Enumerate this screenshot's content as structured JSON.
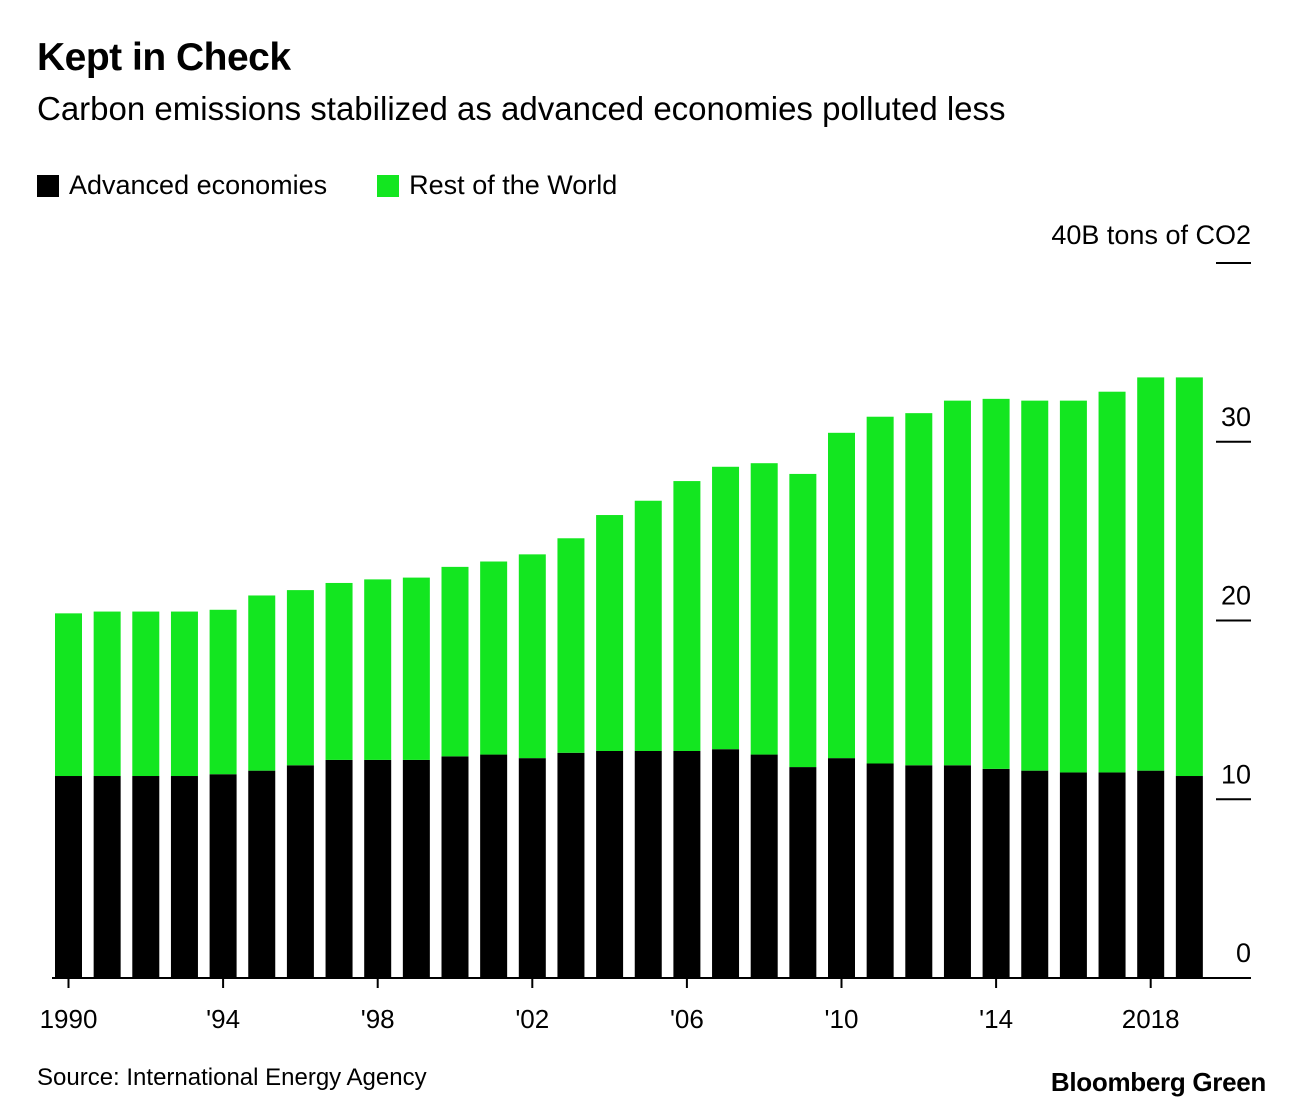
{
  "header": {
    "title": "Kept in Check",
    "subtitle": "Carbon emissions stabilized as advanced economies polluted less"
  },
  "legend": {
    "items": [
      {
        "label": "Advanced economies",
        "color": "#000000"
      },
      {
        "label": "Rest of the World",
        "color": "#13e620"
      }
    ]
  },
  "footer": {
    "source": "Source: International Energy Agency",
    "brand": "Bloomberg Green"
  },
  "chart_data": {
    "type": "bar",
    "stacked": true,
    "unit_label": "40B tons of CO2",
    "ylim": [
      0,
      40
    ],
    "yticks": [
      {
        "value": 0,
        "label": "0"
      },
      {
        "value": 10,
        "label": "10"
      },
      {
        "value": 20,
        "label": "20"
      },
      {
        "value": 30,
        "label": "30"
      },
      {
        "value": 40,
        "label": ""
      }
    ],
    "categories": [
      "1990",
      "1991",
      "1992",
      "1993",
      "1994",
      "1995",
      "1996",
      "1997",
      "1998",
      "1999",
      "2000",
      "2001",
      "2002",
      "2003",
      "2004",
      "2005",
      "2006",
      "2007",
      "2008",
      "2009",
      "2010",
      "2011",
      "2012",
      "2013",
      "2014",
      "2015",
      "2016",
      "2017",
      "2018",
      "2019"
    ],
    "xtick_labels": {
      "1990": "1990",
      "1994": "'94",
      "1998": "'98",
      "2002": "'02",
      "2006": "'06",
      "2010": "'10",
      "2014": "'14",
      "2018": "2018"
    },
    "legend_position": "top-left",
    "series": [
      {
        "name": "Advanced economies",
        "color": "#000000",
        "values": [
          11.3,
          11.3,
          11.3,
          11.3,
          11.4,
          11.6,
          11.9,
          12.2,
          12.2,
          12.2,
          12.4,
          12.5,
          12.3,
          12.6,
          12.7,
          12.7,
          12.7,
          12.8,
          12.5,
          11.8,
          12.3,
          12.0,
          11.9,
          11.9,
          11.7,
          11.6,
          11.5,
          11.5,
          11.6,
          11.3
        ]
      },
      {
        "name": "Rest of the World",
        "color": "#13e620",
        "values": [
          9.1,
          9.2,
          9.2,
          9.2,
          9.2,
          9.8,
          9.8,
          9.9,
          10.1,
          10.2,
          10.6,
          10.8,
          11.4,
          12.0,
          13.2,
          14.0,
          15.1,
          15.8,
          16.3,
          16.4,
          18.2,
          19.4,
          19.7,
          20.4,
          20.7,
          20.7,
          20.8,
          21.3,
          22.0,
          22.3
        ]
      }
    ]
  }
}
